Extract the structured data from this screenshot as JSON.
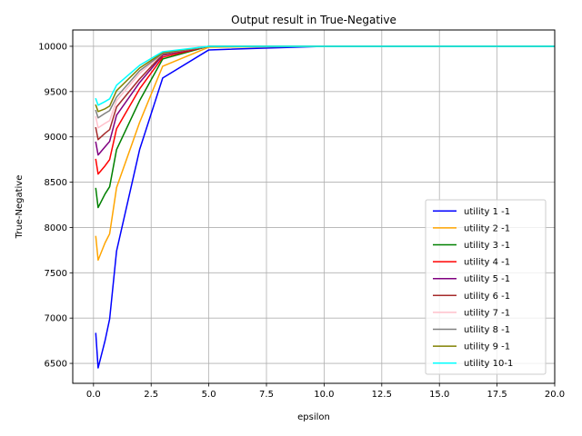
{
  "chart_data": {
    "type": "line",
    "title": "Output result in True-Negative",
    "xlabel": "epsilon",
    "ylabel": "True-Negative",
    "xlim": [
      -0.9,
      20
    ],
    "ylim": [
      6280,
      10180
    ],
    "xticks": [
      0.0,
      2.5,
      5.0,
      7.5,
      10.0,
      12.5,
      15.0,
      17.5,
      20.0
    ],
    "xtick_labels": [
      "0.0",
      "2.5",
      "5.0",
      "7.5",
      "10.0",
      "12.5",
      "15.0",
      "17.5",
      "20.0"
    ],
    "yticks": [
      6500,
      7000,
      7500,
      8000,
      8500,
      9000,
      9500,
      10000
    ],
    "ytick_labels": [
      "6500",
      "7000",
      "7500",
      "8000",
      "8500",
      "9000",
      "9500",
      "10000"
    ],
    "grid": true,
    "legend_position": "lower-right",
    "x": [
      0.1,
      0.2,
      0.5,
      0.7,
      1.0,
      2.0,
      3.0,
      5.0,
      10.0,
      20.0
    ],
    "series": [
      {
        "name": "utility 1 -1",
        "color": "#0000ff",
        "values": [
          6830,
          6450,
          6750,
          6990,
          7740,
          8860,
          9650,
          9960,
          10000,
          10000
        ]
      },
      {
        "name": "utility 2 -1",
        "color": "#ffa500",
        "values": [
          7900,
          7640,
          7830,
          7930,
          8440,
          9160,
          9780,
          9990,
          10000,
          10000
        ]
      },
      {
        "name": "utility 3 -1",
        "color": "#008000",
        "values": [
          8430,
          8220,
          8370,
          8450,
          8860,
          9400,
          9860,
          10000,
          10000,
          10000
        ]
      },
      {
        "name": "utility 4 -1",
        "color": "#ff0000",
        "values": [
          8750,
          8590,
          8680,
          8750,
          9090,
          9530,
          9880,
          10000,
          10000,
          10000
        ]
      },
      {
        "name": "utility 5 -1",
        "color": "#800080",
        "values": [
          8940,
          8800,
          8890,
          8950,
          9240,
          9600,
          9900,
          10000,
          10000,
          10000
        ]
      },
      {
        "name": "utility 6 -1",
        "color": "#a52a2a",
        "values": [
          9100,
          8970,
          9040,
          9080,
          9330,
          9640,
          9910,
          10000,
          10000,
          10000
        ]
      },
      {
        "name": "utility 7 -1",
        "color": "#ffc0cb",
        "values": [
          9220,
          9100,
          9150,
          9180,
          9400,
          9700,
          9920,
          10000,
          10000,
          10000
        ]
      },
      {
        "name": "utility 8 -1",
        "color": "#808080",
        "values": [
          9290,
          9210,
          9260,
          9290,
          9440,
          9730,
          9920,
          10000,
          10000,
          10000
        ]
      },
      {
        "name": "utility 9 -1",
        "color": "#808000",
        "values": [
          9350,
          9280,
          9310,
          9340,
          9510,
          9760,
          9930,
          10000,
          10000,
          10000
        ]
      },
      {
        "name": "utility 10-1",
        "color": "#00ffff",
        "values": [
          9420,
          9350,
          9390,
          9420,
          9570,
          9790,
          9940,
          10000,
          10000,
          10000
        ]
      }
    ]
  }
}
